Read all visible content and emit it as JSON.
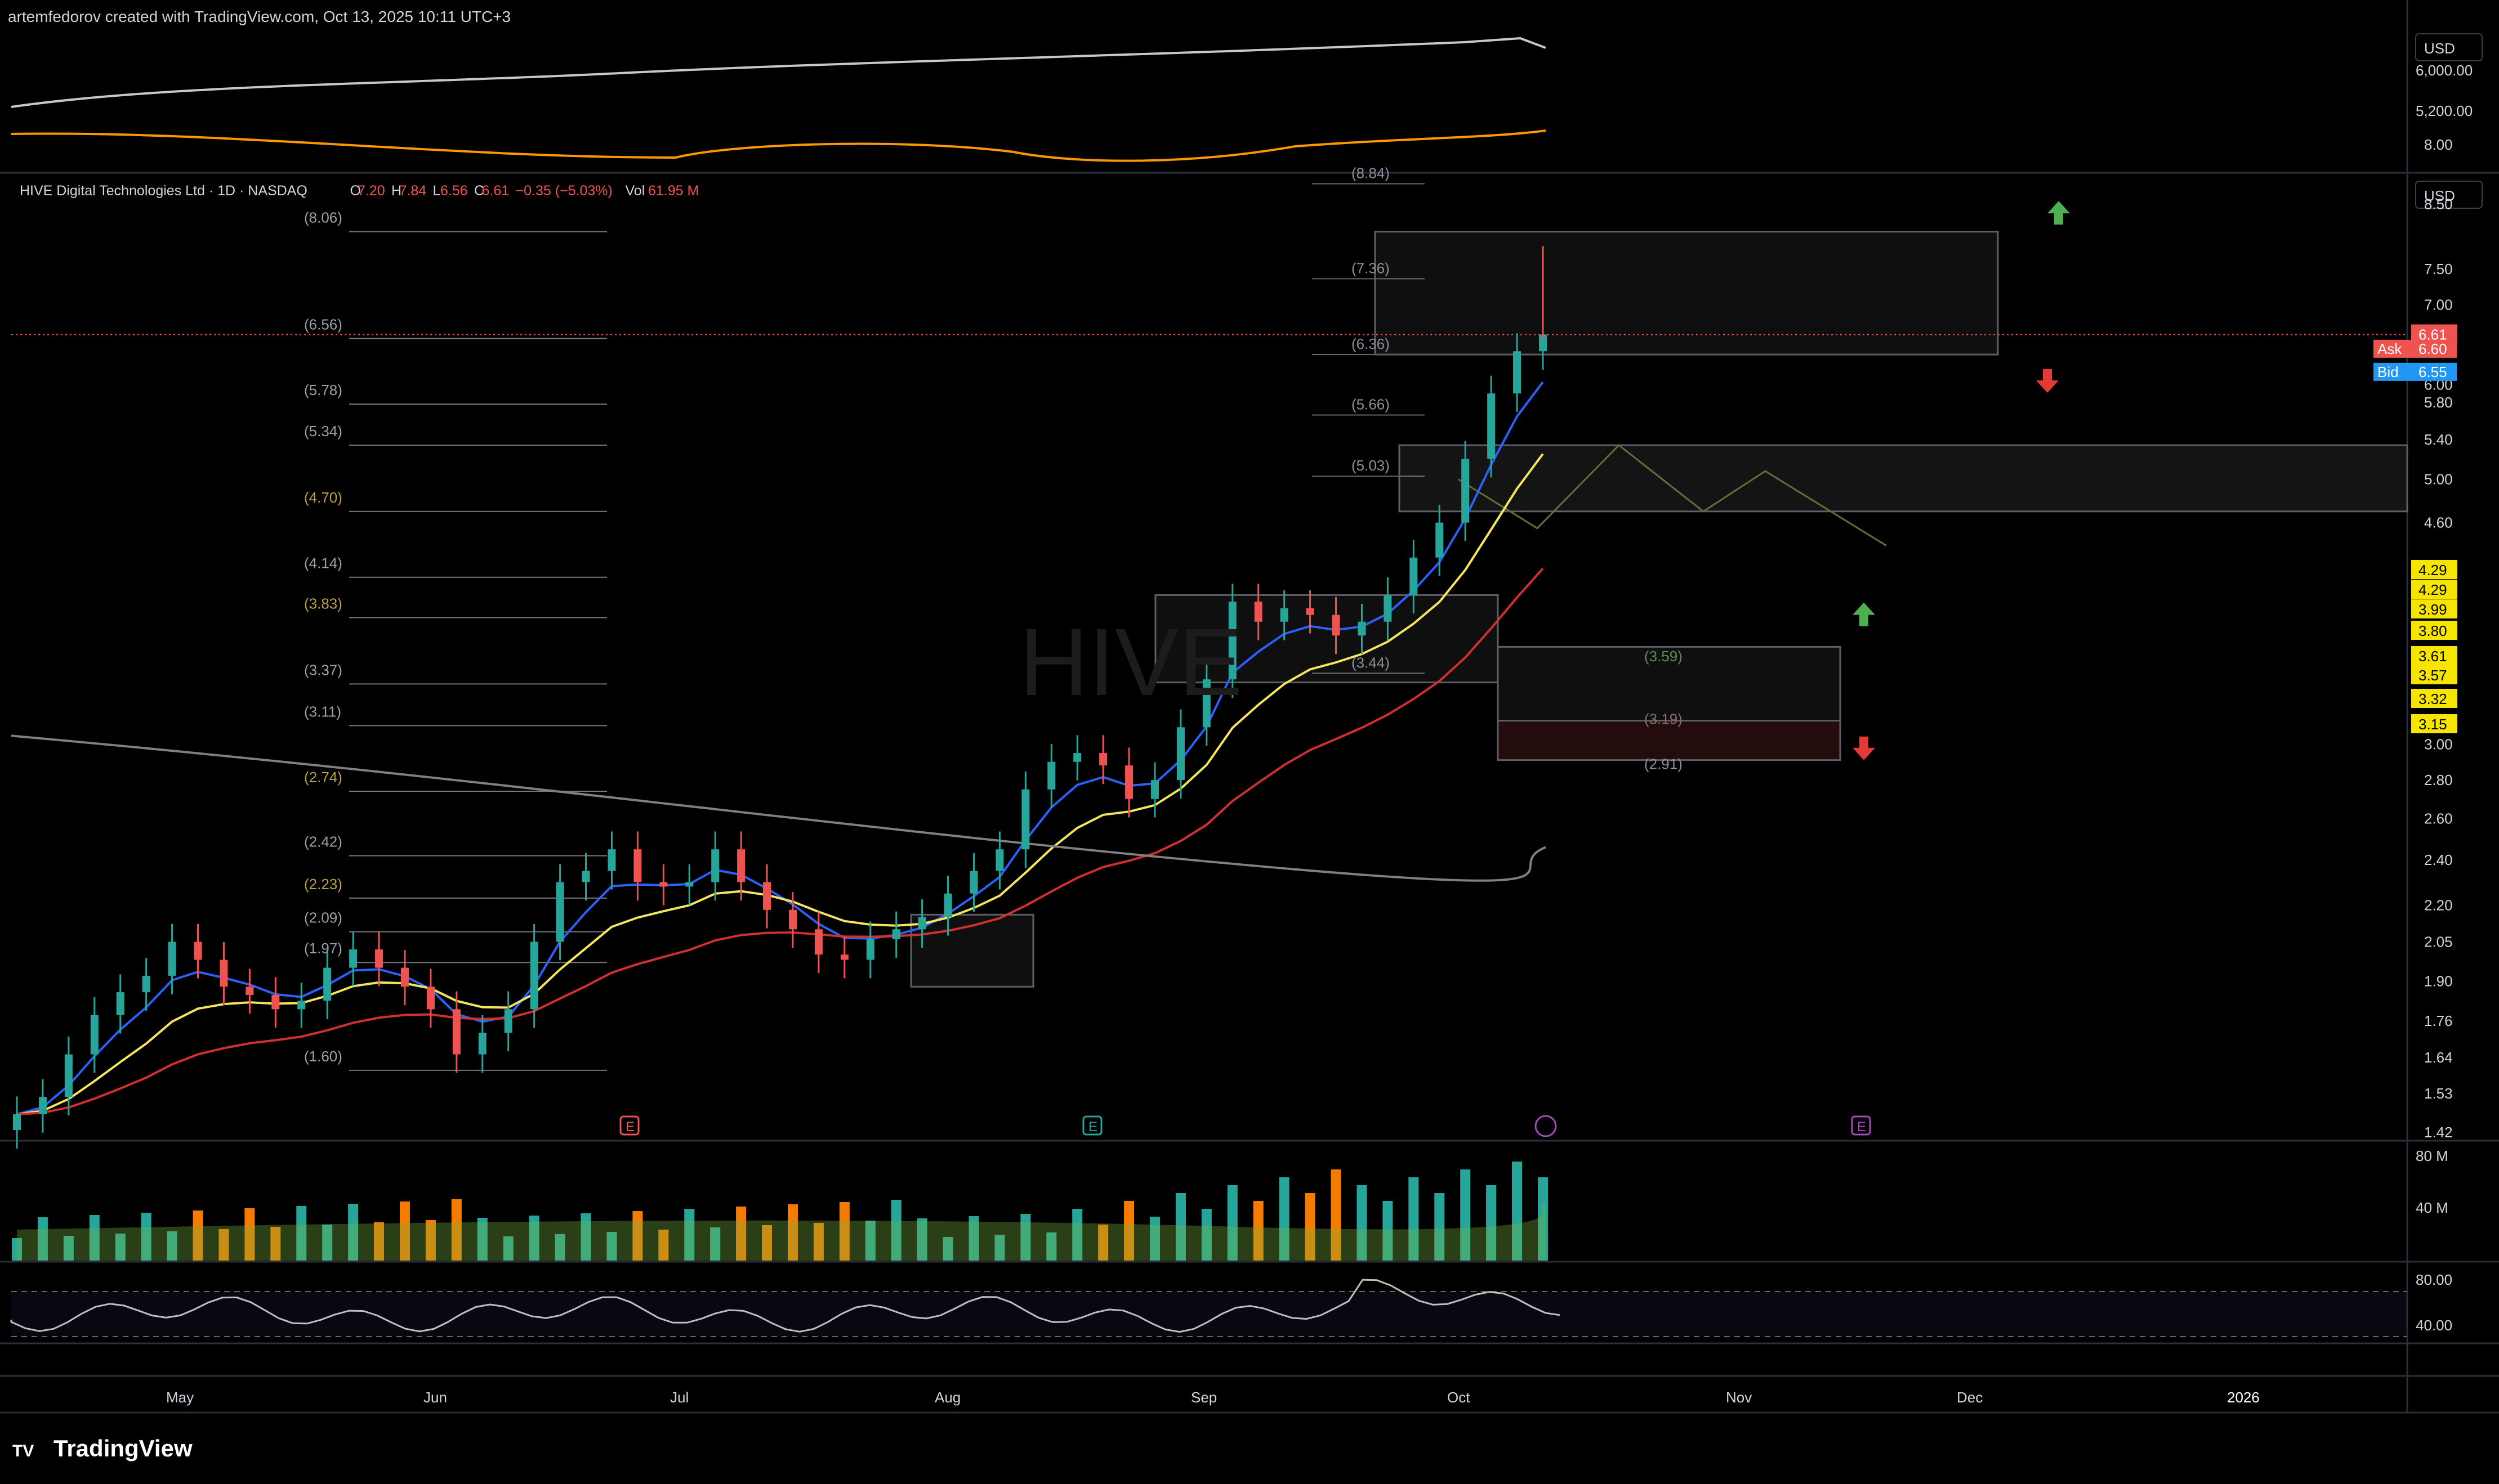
{
  "header": {
    "attribution": "artemfedorov created with TradingView.com, Oct 13, 2025 10:11 UTC+3"
  },
  "legend": {
    "name": "HIVE Digital Technologies Ltd · 1D · NASDAQ",
    "o_label": "O",
    "o": "7.20",
    "h_label": "H",
    "h": "7.84",
    "l_label": "L",
    "l": "6.56",
    "c_label": "C",
    "c": "6.61",
    "chg": "−0.35 (−5.03%)",
    "vol_label": "Vol",
    "vol": "61.95 M"
  },
  "watermark": "HIVE",
  "currency": "USD",
  "top_pane": {
    "ticks": [
      "6,000.00",
      "5,200.00",
      "8.00"
    ]
  },
  "price_axis": {
    "ticks": [
      "8.50",
      "7.50",
      "7.00",
      "6.00",
      "5.80",
      "5.40",
      "5.00",
      "4.60",
      "3.00",
      "2.80",
      "2.60",
      "2.40",
      "2.20",
      "2.05",
      "1.90",
      "1.76",
      "1.64",
      "1.53",
      "1.42"
    ],
    "price_tag": "6.61",
    "ask_label": "Ask",
    "ask": "6.60",
    "bid_label": "Bid",
    "bid": "6.55",
    "yellow_tags": [
      "4.29",
      "4.29",
      "3.99",
      "3.80",
      "3.61",
      "3.57",
      "3.32",
      "3.15"
    ]
  },
  "fib_left": [
    "(8.06)",
    "(6.56)",
    "(5.78)",
    "(5.34)",
    "(4.70)",
    "(4.14)",
    "(3.83)",
    "(3.37)",
    "(3.11)",
    "(2.74)",
    "(2.42)",
    "(2.23)",
    "(2.09)",
    "(1.97)",
    "(1.60)"
  ],
  "fib_right": [
    "(8.84)",
    "(7.36)",
    "(6.36)",
    "(5.66)",
    "(5.03)",
    "(3.44)"
  ],
  "zone_labels": [
    "(3.59)",
    "(3.19)",
    "(2.91)"
  ],
  "earnings_markers": [
    "E",
    "E",
    "E"
  ],
  "volume_pane": {
    "ticks": [
      "80 M",
      "40 M"
    ]
  },
  "rsi_pane": {
    "ticks": [
      "80.00",
      "40.00"
    ]
  },
  "time_axis": [
    "May",
    "Jun",
    "Jul",
    "Aug",
    "Sep",
    "Oct",
    "Nov",
    "Dec",
    "2026"
  ],
  "footer": {
    "brand": "TradingView"
  },
  "colors": {
    "up": "#26a69a",
    "down": "#ef5350",
    "ema_fast": "#2962ff",
    "ema_mid": "#f5e55c",
    "ema_slow": "#d32f2f",
    "sma_long": "#808080",
    "tag_yellow": "#f5e500",
    "bid": "#2196f3"
  },
  "chart_data": {
    "type": "line",
    "title": "HIVE Digital Technologies Ltd · 1D · NASDAQ",
    "x_axis": [
      "May",
      "Jun",
      "Jul",
      "Aug",
      "Sep",
      "Oct",
      "Nov",
      "Dec",
      "2026"
    ],
    "y_scale": "log",
    "ylim": [
      1.4,
      9.0
    ],
    "series": [
      {
        "name": "close",
        "values": [
          1.47,
          1.52,
          1.65,
          1.78,
          1.86,
          1.92,
          2.05,
          1.98,
          1.88,
          1.85,
          1.8,
          1.83,
          1.95,
          2.02,
          1.95,
          1.88,
          1.8,
          1.65,
          1.72,
          1.8,
          2.05,
          2.3,
          2.35,
          2.45,
          2.3,
          2.28,
          2.3,
          2.45,
          2.3,
          2.18,
          2.1,
          2.0,
          1.98,
          2.06,
          2.1,
          2.15,
          2.25,
          2.35,
          2.45,
          2.75,
          2.9,
          2.95,
          2.88,
          2.7,
          2.8,
          3.1,
          3.4,
          3.95,
          3.8,
          3.9,
          3.85,
          3.7,
          3.8,
          4.0,
          4.3,
          4.6,
          5.2,
          5.9,
          6.4,
          6.61
        ]
      }
    ],
    "grid": false
  }
}
